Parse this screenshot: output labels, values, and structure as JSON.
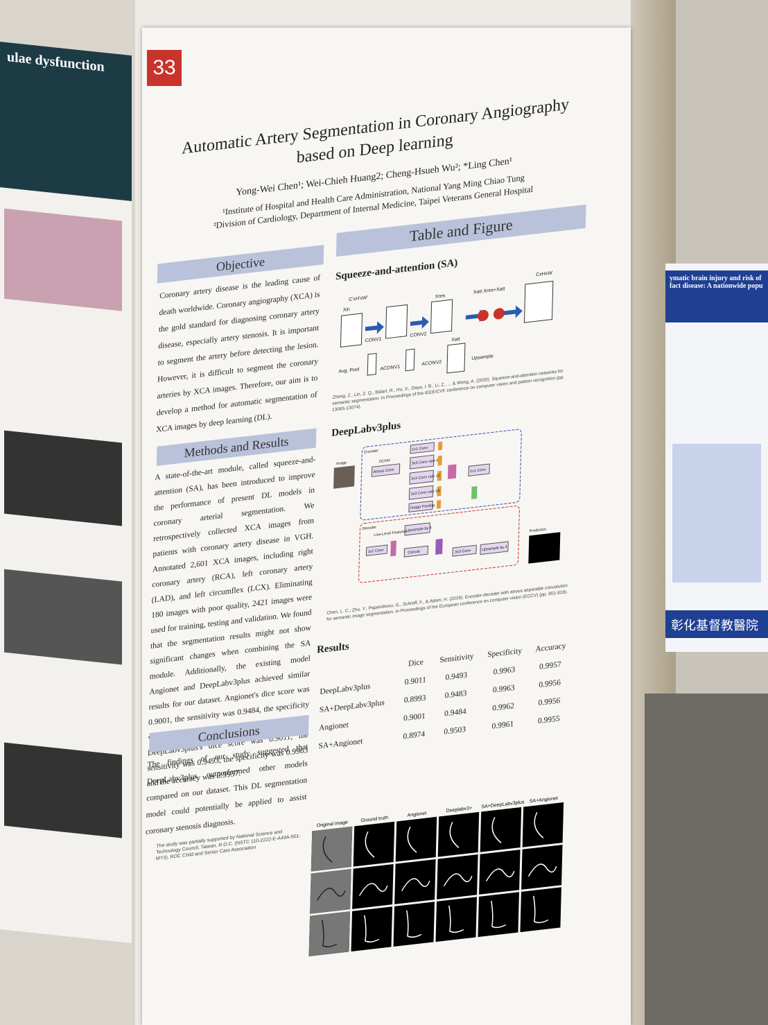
{
  "side_left": {
    "title": "ulae dysfunction"
  },
  "poster": {
    "number": "33",
    "title_line1": "Automatic Artery Segmentation in Coronary Angiography",
    "title_line2": "based on Deep learning",
    "authors": "Yong-Wei Chen¹; Wei-Chieh Huang2; Cheng-Hsueh Wu²; *Ling Chen¹",
    "affiliation1": "¹Institute of Hospital and Health Care Administration, National Yang Ming Chiao Tung",
    "affiliation2": "²Division of Cardiology, Department of Internal Medicine, Taipei Veterans General Hospital",
    "objective": {
      "heading": "Objective",
      "text": "Coronary artery disease is the leading cause of death worldwide. Coronary angiography (XCA) is the gold standard for diagnosing coronary artery disease, especially artery stenosis. It is important to segment the artery before detecting the lesion. However, it is difficult to segment the coronary arteries by XCA images. Therefore, our aim is to develop a method for automatic segmentation of XCA images by deep learning (DL)."
    },
    "methods": {
      "heading": "Methods and Results",
      "text": "A state-of-the-art module, called squeeze-and-attention (SA), has been introduced to improve the performance of present DL models in coronary arterial segmentation. We retrospectively collected XCA images from patients with coronary artery disease in VGH. Annotated 2,601 XCA images, including right coronary artery (RCA), left coronary artery (LAD), and left circumflex (LCX). Eliminating 180 images with poor quality, 2421 images were used for training, testing and validation. We found that the segmentation results might not show significant changes when combining the SA module. Additionally, the existing model Angionet and DeepLabv3plus achieved similar results for our dataset. Angionet's dice score was 0.9001, the sensitivity was 0.9484, the specificity was 0.9962 and the accuracy was 0.9956. DeepLabv3plus's dice score was 0.9011, the sensitivity was 0.9493, the specificity was 0.9963 and the accuracy was 0.9957."
    },
    "conclusions": {
      "heading": "Conclusions",
      "text": "The findings of our study suggested that DeepLabv3plus outperformed other models compared on our dataset. This DL segmentation model could potentially be applied to assist coronary stenosis diagnosis."
    },
    "funding": "The study was partially supported by National Science and Technology Council, Taiwan, R.O.C. (NSTC 110-2222-E-A49A-501-MY3), ROC Child and Senior Care Association",
    "figures": {
      "heading": "Table and Figure",
      "sa_heading": "Squeeze-and-attention (SA)",
      "sa_labels": [
        "C'xH'xW'",
        "Xin",
        "CONV1",
        "CONV2",
        "Xres",
        "Xatt·Xres+Xatt",
        "CxHxW",
        "Avg. Pool",
        "ACONV1",
        "ACONV2",
        "Xatt",
        "Upsample"
      ],
      "sa_reference": "Zhong, Z., Lin, Z. Q., Bidart, R., Hu, X., Daya, I. B., Li, Z., ... & Wong, A. (2020). Squeeze-and-attention networks for semantic segmentation. In Proceedings of the IEEE/CVF conference on computer vision and pattern recognition (pp. 13065-13074).",
      "deeplab_heading": "DeepLabv3plus",
      "deeplab_labels": [
        "Encoder",
        "Image",
        "DCNN",
        "Atrous Conv",
        "1x1 Conv",
        "3x3 Conv rate 6",
        "3x3 Conv rate 12",
        "3x3 Conv rate 18",
        "Image Pooling",
        "1x1 Conv",
        "Decoder",
        "Low-Level Features",
        "1x1 Conv",
        "Upsample by 4",
        "Concat",
        "3x3 Conv",
        "Upsample by 4",
        "Prediction"
      ],
      "deeplab_reference": "Chen, L. C., Zhu, Y., Papandreou, G., Schroff, F., & Adam, H. (2018). Encoder-decoder with atrous separable convolution for semantic image segmentation. In Proceedings of the European conference on computer vision (ECCV) (pp. 801-818)."
    },
    "results": {
      "heading": "Results",
      "columns": [
        "Dice",
        "Sensitivity",
        "Specificity",
        "Accuracy"
      ],
      "rows": [
        [
          "DeepLabv3plus",
          "0.9011",
          "0.9493",
          "0.9963",
          "0.9957"
        ],
        [
          "SA+DeepLabv3plus",
          "0.8993",
          "0.9483",
          "0.9963",
          "0.9956"
        ],
        [
          "Angionet",
          "0.9001",
          "0.9484",
          "0.9962",
          "0.9956"
        ],
        [
          "SA+Angionet",
          "0.8974",
          "0.9503",
          "0.9961",
          "0.9955"
        ]
      ],
      "image_columns": [
        "Original image",
        "Ground truth",
        "Angionet",
        "Deeplabv3+",
        "SA+DeepLabv3plus",
        "SA+Angionet"
      ]
    }
  },
  "side_right": {
    "title": "ymatic brain injury and risk of",
    "subtitle": "fact disease: A nationwide popu",
    "banner": "彰化基督教醫院"
  }
}
